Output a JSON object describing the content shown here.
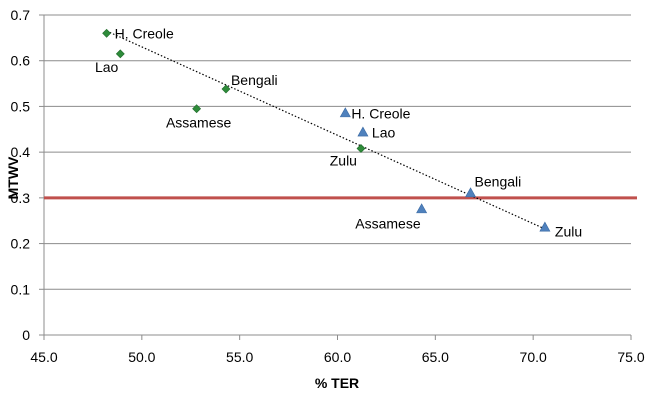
{
  "chart_data": {
    "type": "scatter",
    "title": "",
    "xlabel": "% TER",
    "ylabel": "MTWV",
    "xlim": [
      45.0,
      75.0
    ],
    "ylim": [
      0,
      0.7
    ],
    "x_ticks": [
      "45.0",
      "50.0",
      "55.0",
      "60.0",
      "65.0",
      "70.0",
      "75.0"
    ],
    "y_ticks": [
      "0",
      "0.1",
      "0.2",
      "0.3",
      "0.4",
      "0.5",
      "0.6",
      "0.7"
    ],
    "grid": "horizontal",
    "series": [
      {
        "marker": "diamond",
        "color": "#2e8b3a",
        "points": [
          {
            "x": 48.2,
            "y": 0.66,
            "label": "H. Creole"
          },
          {
            "x": 48.9,
            "y": 0.615,
            "label": "Lao"
          },
          {
            "x": 54.3,
            "y": 0.538,
            "label": "Bengali"
          },
          {
            "x": 52.8,
            "y": 0.495,
            "label": "Assamese"
          },
          {
            "x": 61.2,
            "y": 0.408,
            "label": "Zulu"
          }
        ]
      },
      {
        "marker": "triangle",
        "color": "#4f81bd",
        "points": [
          {
            "x": 60.4,
            "y": 0.485,
            "label": "H. Creole"
          },
          {
            "x": 61.3,
            "y": 0.443,
            "label": "Lao"
          },
          {
            "x": 66.8,
            "y": 0.31,
            "label": "Bengali"
          },
          {
            "x": 64.3,
            "y": 0.275,
            "label": "Assamese"
          },
          {
            "x": 70.6,
            "y": 0.235,
            "label": "Zulu"
          }
        ]
      }
    ],
    "trendline": {
      "style": "dotted",
      "color": "#000000",
      "x": [
        48.2,
        70.6
      ],
      "y": [
        0.665,
        0.232
      ]
    },
    "reference_line": {
      "y": 0.3,
      "color": "#c0504d"
    }
  }
}
